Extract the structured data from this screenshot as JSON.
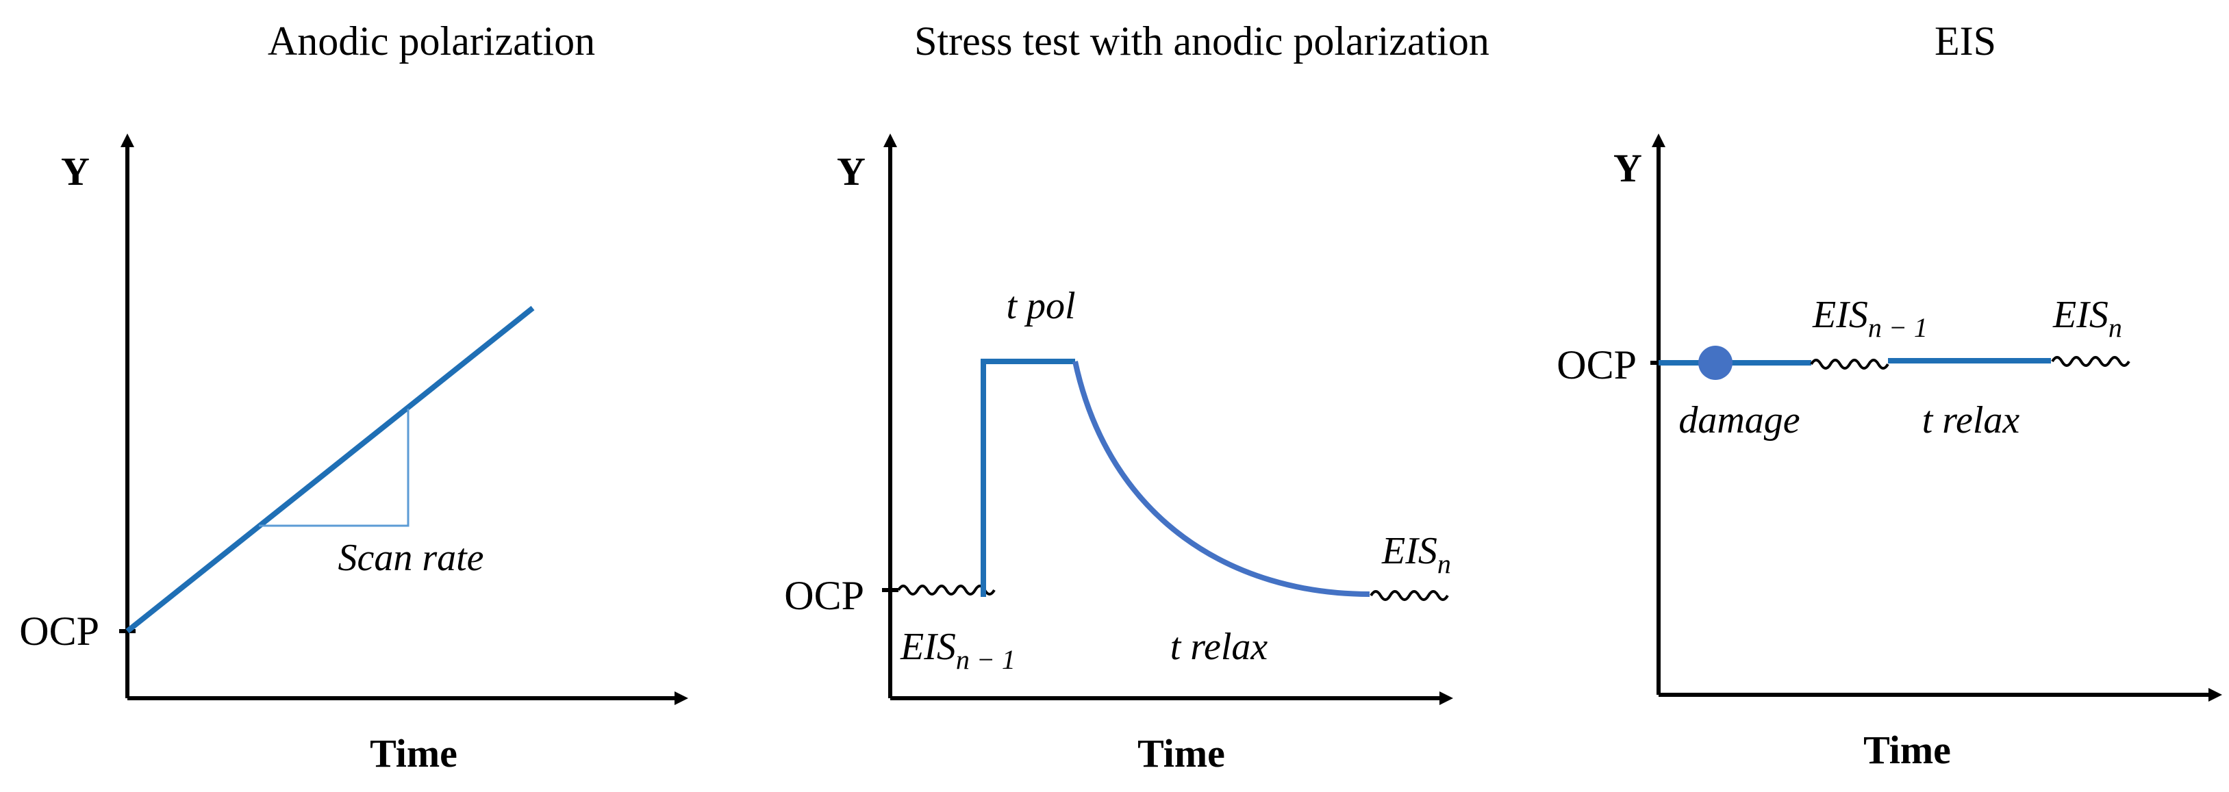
{
  "panels": [
    {
      "title": "Anodic polarization",
      "y_label": "Y",
      "x_label": "Time",
      "ocp_label": "OCP",
      "annotation": "Scan rate"
    },
    {
      "title": "Stress test with anodic polarization",
      "y_label": "Y",
      "x_label": "Time",
      "ocp_label": "OCP",
      "tpol_label": "t pol",
      "trelax_label": "t relax",
      "eis_prev_main": "EIS",
      "eis_prev_sub": "n − 1",
      "eis_n_main": "EIS",
      "eis_n_sub": "n"
    },
    {
      "title": "EIS",
      "y_label": "Y",
      "x_label": "Time",
      "ocp_label": "OCP",
      "damage_label": "damage",
      "trelax_label": "t relax",
      "eis_prev_main": "EIS",
      "eis_prev_sub": "n − 1",
      "eis_n_main": "EIS",
      "eis_n_sub": "n"
    }
  ],
  "colors": {
    "line": "#1f6fb5",
    "curve": "#4472c4",
    "triangle": "#5b9bd5",
    "damage_dot": "#4472c4",
    "axis": "#000000"
  }
}
